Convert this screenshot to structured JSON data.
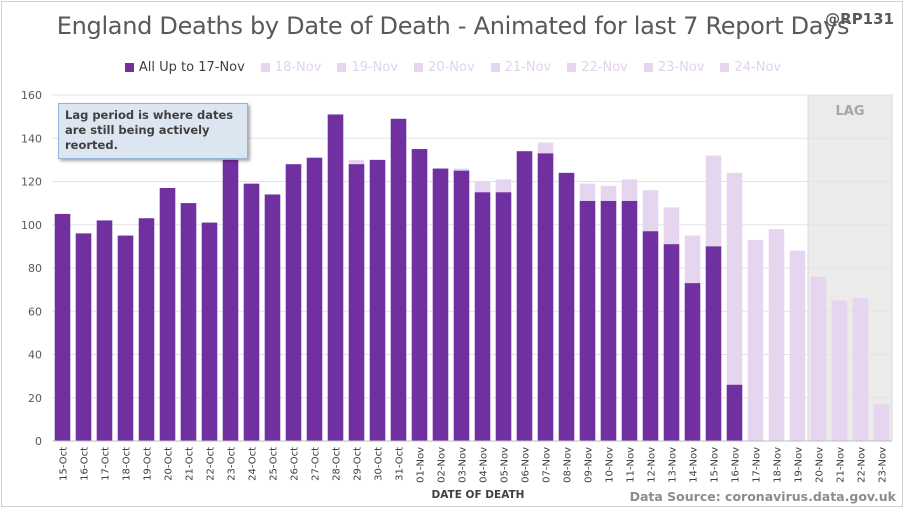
{
  "header": {
    "title": "England Deaths by Date of Death - Animated for last 7 Report Days",
    "handle": "@RP131"
  },
  "note": {
    "text": "Lag period is where dates are still being actively reorted."
  },
  "source": "Data Source: coronavirus.data.gov.uk",
  "lag_label": "LAG",
  "colors": {
    "main": "#7030a0",
    "light": "#e6d5ef",
    "lag_fill": "#ebebeb"
  },
  "chart_data": {
    "type": "bar",
    "xlabel": "DATE OF DEATH",
    "ylabel": "",
    "ylim": [
      0,
      160
    ],
    "yticks": [
      0,
      20,
      40,
      60,
      80,
      100,
      120,
      140,
      160
    ],
    "categories": [
      "15-Oct",
      "16-Oct",
      "17-Oct",
      "18-Oct",
      "19-Oct",
      "20-Oct",
      "21-Oct",
      "22-Oct",
      "23-Oct",
      "24-Oct",
      "25-Oct",
      "26-Oct",
      "27-Oct",
      "28-Oct",
      "29-Oct",
      "30-Oct",
      "31-Oct",
      "01-Nov",
      "02-Nov",
      "03-Nov",
      "04-Nov",
      "05-Nov",
      "06-Nov",
      "07-Nov",
      "08-Nov",
      "09-Nov",
      "10-Nov",
      "11-Nov",
      "12-Nov",
      "13-Nov",
      "14-Nov",
      "15-Nov",
      "16-Nov",
      "17-Nov",
      "18-Nov",
      "19-Nov",
      "20-Nov",
      "21-Nov",
      "22-Nov",
      "23-Nov"
    ],
    "series": [
      {
        "name": "All Up to 17-Nov",
        "values": [
          105,
          96,
          102,
          95,
          103,
          117,
          110,
          101,
          130,
          119,
          114,
          128,
          131,
          151,
          128,
          130,
          149,
          135,
          126,
          125,
          115,
          115,
          134,
          133,
          124,
          111,
          111,
          111,
          97,
          91,
          73,
          90,
          26,
          0,
          0,
          0,
          0,
          0,
          0,
          0
        ]
      },
      {
        "name": "24-Nov",
        "values": [
          105,
          96,
          102,
          95,
          103,
          117,
          110,
          101,
          130,
          119,
          114,
          128,
          131,
          151,
          130,
          130,
          149,
          135,
          126,
          126,
          120,
          121,
          134,
          138,
          124,
          119,
          118,
          121,
          116,
          108,
          95,
          132,
          124,
          93,
          98,
          88,
          76,
          65,
          66,
          17
        ]
      }
    ],
    "legend": [
      "All Up to 17-Nov",
      "18-Nov",
      "19-Nov",
      "20-Nov",
      "21-Nov",
      "22-Nov",
      "23-Nov",
      "24-Nov"
    ],
    "legend_position": "top",
    "lag_period": [
      "20-Nov",
      "23-Nov"
    ],
    "grid": true
  }
}
